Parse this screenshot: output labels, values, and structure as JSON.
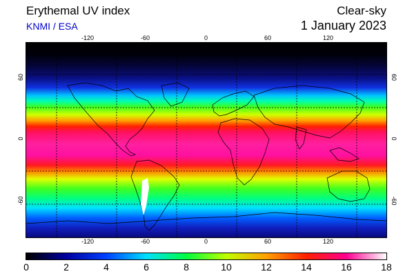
{
  "header": {
    "title": "Erythemal UV index",
    "credit": "KNMI / ESA",
    "mode": "Clear-sky",
    "date": "1 January 2023"
  },
  "map": {
    "lon_ticks_top": [
      "-120",
      "-60",
      "0",
      "60",
      "120"
    ],
    "lon_ticks_bottom": [
      "-120",
      "-60",
      "0",
      "60",
      "120"
    ],
    "lat_ticks_left": [
      "60",
      "0",
      "-60"
    ],
    "lat_ticks_right": [
      "60",
      "0",
      "-60"
    ],
    "projection": "equirectangular",
    "grid": true
  },
  "colorbar": {
    "labels": [
      "0",
      "2",
      "4",
      "6",
      "8",
      "10",
      "12",
      "14",
      "16",
      "18"
    ],
    "min": 0,
    "max": 18,
    "colors": [
      "#000000",
      "#0000a0",
      "#0040ff",
      "#00e0ff",
      "#00ff40",
      "#c0ff00",
      "#ffa000",
      "#ff2000",
      "#ff0090",
      "#ffffff"
    ]
  }
}
